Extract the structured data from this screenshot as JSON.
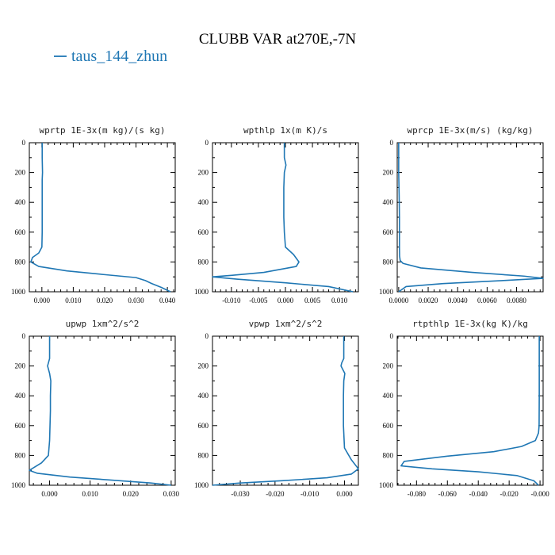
{
  "figure": {
    "title": "CLUBB VAR at270E,-7N",
    "legend": {
      "label": "taus_144_zhun",
      "color": "#1f77b4"
    }
  },
  "chart_data": [
    {
      "type": "line",
      "title": "wprtp  1E-3x(m kg)/(s kg)",
      "xlim": [
        -0.004,
        0.0425
      ],
      "ylim": [
        1000,
        0
      ],
      "xticks": [
        0.0,
        0.01,
        0.02,
        0.03,
        0.04
      ],
      "xtick_labels": [
        "0.000",
        "0.010",
        "0.020",
        "0.030",
        "0.040"
      ],
      "yticks": [
        0,
        200,
        400,
        600,
        800,
        1000
      ],
      "yticks_minor": [
        100,
        300,
        500,
        700,
        900
      ],
      "series": [
        {
          "color": "#1f77b4",
          "x": [
            0.0001,
            0.0001,
            0.0002,
            0.0001,
            0.0001,
            0.0001,
            0.0001,
            0.0001,
            0.0,
            -0.001,
            -0.003,
            -0.0035,
            -0.001,
            0.008,
            0.02,
            0.03,
            0.033,
            0.035,
            0.038,
            0.041
          ],
          "y": [
            0,
            100,
            200,
            250,
            300,
            400,
            500,
            600,
            700,
            740,
            770,
            800,
            830,
            860,
            885,
            905,
            925,
            945,
            970,
            1000
          ]
        }
      ]
    },
    {
      "type": "line",
      "title": "wpthlp  1x(m K)/s",
      "xlim": [
        -0.0135,
        0.0135
      ],
      "ylim": [
        1000,
        0
      ],
      "xticks": [
        -0.01,
        -0.005,
        0.0,
        0.005,
        0.01
      ],
      "xtick_labels": [
        "-0.010",
        "-0.005",
        "0.000",
        "0.005",
        "0.010"
      ],
      "yticks": [
        0,
        200,
        400,
        600,
        800,
        1000
      ],
      "yticks_minor": [
        100,
        300,
        500,
        700,
        900
      ],
      "series": [
        {
          "color": "#1f77b4",
          "x": [
            -0.0002,
            -0.0002,
            0.0001,
            -0.0002,
            -0.0003,
            -0.0003,
            -0.0003,
            -0.0002,
            0.0,
            0.0015,
            0.0025,
            0.002,
            -0.004,
            -0.01,
            -0.0135,
            -0.009,
            0.0,
            0.008,
            0.0125
          ],
          "y": [
            0,
            100,
            150,
            200,
            300,
            400,
            500,
            600,
            700,
            750,
            800,
            830,
            870,
            890,
            900,
            915,
            940,
            965,
            1000
          ]
        }
      ]
    },
    {
      "type": "line",
      "title": "wprcp  1E-3x(m/s) (kg/kg)",
      "xlim": [
        -0.0001,
        0.0098
      ],
      "ylim": [
        1000,
        0
      ],
      "xticks": [
        0.0,
        0.002,
        0.004,
        0.006,
        0.008
      ],
      "xtick_labels": [
        "0.0000",
        "0.0020",
        "0.0040",
        "0.0060",
        "0.0080"
      ],
      "yticks": [
        0,
        200,
        400,
        600,
        800,
        1000
      ],
      "yticks_minor": [
        100,
        300,
        500,
        700,
        900
      ],
      "series": [
        {
          "color": "#1f77b4",
          "x": [
            0.0,
            0.0,
            3e-05,
            5e-05,
            5e-05,
            5e-05,
            6e-05,
            0.0001,
            0.0003,
            0.0015,
            0.005,
            0.0085,
            0.0098,
            0.007,
            0.003,
            0.0005,
            0.0
          ],
          "y": [
            0,
            200,
            350,
            500,
            600,
            700,
            760,
            790,
            810,
            840,
            870,
            895,
            910,
            925,
            945,
            965,
            1000
          ]
        }
      ]
    },
    {
      "type": "line",
      "title": "upwp  1xm^2/s^2",
      "xlim": [
        -0.005,
        0.031
      ],
      "ylim": [
        1000,
        0
      ],
      "xticks": [
        0.0,
        0.01,
        0.02,
        0.03
      ],
      "xtick_labels": [
        "0.000",
        "0.010",
        "0.020",
        "0.030"
      ],
      "yticks": [
        0,
        200,
        400,
        600,
        800,
        1000
      ],
      "yticks_minor": [
        100,
        300,
        500,
        700,
        900
      ],
      "series": [
        {
          "color": "#1f77b4",
          "x": [
            0.0,
            0.0,
            -0.0005,
            0.0,
            0.0003,
            0.0002,
            0.0002,
            0.0001,
            0.0,
            -0.0003,
            -0.002,
            -0.005,
            -0.003,
            0.005,
            0.015,
            0.025,
            0.03
          ],
          "y": [
            0,
            150,
            200,
            250,
            300,
            400,
            500,
            600,
            700,
            800,
            850,
            900,
            920,
            945,
            965,
            985,
            1000
          ]
        }
      ]
    },
    {
      "type": "line",
      "title": "vpwp  1xm^2/s^2",
      "xlim": [
        -0.038,
        0.004
      ],
      "ylim": [
        1000,
        0
      ],
      "xticks": [
        -0.03,
        -0.02,
        -0.01,
        0.0
      ],
      "xtick_labels": [
        "-0.030",
        "-0.020",
        "-0.010",
        "0.000"
      ],
      "yticks": [
        0,
        200,
        400,
        600,
        800,
        1000
      ],
      "yticks_minor": [
        100,
        300,
        500,
        700,
        900
      ],
      "series": [
        {
          "color": "#1f77b4",
          "x": [
            -0.0002,
            -0.0002,
            -0.0008,
            -0.001,
            0.0001,
            -0.0002,
            -0.0003,
            -0.0003,
            -0.0003,
            0.0,
            0.002,
            0.004,
            0.002,
            -0.005,
            -0.018,
            -0.03,
            -0.038
          ],
          "y": [
            0,
            150,
            180,
            200,
            250,
            300,
            400,
            500,
            600,
            750,
            830,
            890,
            925,
            950,
            970,
            985,
            1000
          ]
        }
      ]
    },
    {
      "type": "line",
      "title": "rtpthlp  1E-3x(kg K)/kg",
      "xlim": [
        -0.0925,
        0.002
      ],
      "ylim": [
        1000,
        0
      ],
      "xticks": [
        -0.08,
        -0.06,
        -0.04,
        -0.02,
        0.0
      ],
      "xtick_labels": [
        "-0.080",
        "-0.060",
        "-0.040",
        "-0.020",
        "-0.000"
      ],
      "yticks": [
        0,
        200,
        400,
        600,
        800,
        1000
      ],
      "yticks_minor": [
        100,
        300,
        500,
        700,
        900
      ],
      "series": [
        {
          "color": "#1f77b4",
          "x": [
            -0.0005,
            -0.0005,
            -0.0006,
            -0.001,
            -0.003,
            -0.012,
            -0.03,
            -0.06,
            -0.088,
            -0.09,
            -0.07,
            -0.04,
            -0.015,
            -0.004,
            -0.001
          ],
          "y": [
            0,
            400,
            600,
            650,
            700,
            740,
            775,
            805,
            840,
            870,
            890,
            910,
            935,
            970,
            1000
          ]
        }
      ]
    }
  ]
}
